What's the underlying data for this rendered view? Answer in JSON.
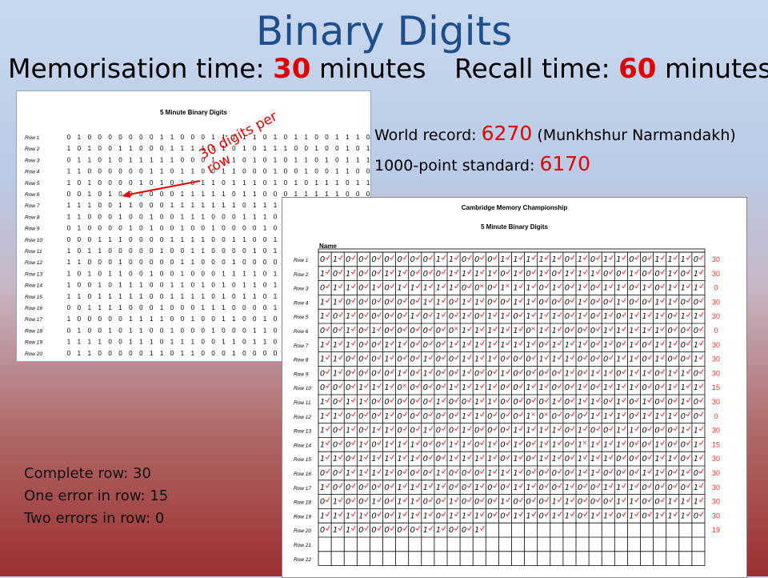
{
  "title": "Binary Digits",
  "memorisation": {
    "label": "Memorisation time:",
    "value": "30",
    "unit": "minutes"
  },
  "recall": {
    "label": "Recall time:",
    "value": "60",
    "unit": "minutes"
  },
  "world_record": {
    "label": "World record:",
    "value": "6270",
    "holder": "(Munkhshur Narmandakh)"
  },
  "standard": {
    "label": "1000-point standard:",
    "value": "6170"
  },
  "annotation": "30 digits per row",
  "scoring": {
    "complete": "Complete row: 30",
    "one_error": "One error in row: 15",
    "two_errors": "Two errors in row: 0"
  },
  "sheet1": {
    "title": "5 Minute Binary Digits",
    "rows": [
      {
        "label": "Row 1",
        "digits": "010000000110001111101011001110"
      },
      {
        "label": "Row 2",
        "digits": "101001100011110101011100100101"
      },
      {
        "label": "Row 3",
        "digits": "011010111110001110101011010111"
      },
      {
        "label": "Row 4",
        "digits": "110000001101100110001001001100"
      },
      {
        "label": "Row 5",
        "digits": "101000010101011011101010111011"
      },
      {
        "label": "Row 6",
        "digits": "001010000001111101100011111000"
      },
      {
        "label": "Row 7",
        "digits": "111001100011111110111010101101"
      },
      {
        "label": "Row 8",
        "digits": "110001001001110001110001101001"
      },
      {
        "label": "Row 9",
        "digits": "010000101001001000010110110110"
      },
      {
        "label": "Row 10",
        "digits": "000111000011110011001011100111"
      },
      {
        "label": "Row 11",
        "digits": "101100000100110000101101010010"
      },
      {
        "label": "Row 12",
        "digits": "110001000001100010000111011100"
      },
      {
        "label": "Row 13",
        "digits": "101011001001000111101001100011"
      },
      {
        "label": "Row 14",
        "digits": "100101110011010101101111001001"
      },
      {
        "label": "Row 15",
        "digits": "110111110011110101101110001101"
      },
      {
        "label": "Row 16",
        "digits": "001111000100011100001100011010"
      },
      {
        "label": "Row 17",
        "digits": "100000111100100110010011100001"
      },
      {
        "label": "Row 18",
        "digits": "010010110010001000110001100111"
      },
      {
        "label": "Row 19",
        "digits": "111100111011100110110110101110"
      },
      {
        "label": "Row 20",
        "digits": "011000001101100010000101110101"
      }
    ]
  },
  "sheet2": {
    "title": "Cambridge Memory Championship",
    "subtitle": "5 Minute Binary Digits",
    "name_label": "Name",
    "rows": [
      {
        "label": "Row 1",
        "digits": "010000000110001111101011001110",
        "score": "30",
        "errors": []
      },
      {
        "label": "Row 2",
        "digits": "101001100011110101011100100101",
        "score": "30",
        "errors": []
      },
      {
        "label": "Row 3",
        "digits": "011010111110001110101011010111",
        "score": "0",
        "errors": [
          12,
          14
        ]
      },
      {
        "label": "Row 4",
        "digits": "110000001101100110001001001100",
        "score": "30",
        "errors": []
      },
      {
        "label": "Row 5",
        "digits": "101000010101011011101010111011",
        "score": "30",
        "errors": []
      },
      {
        "label": "Row 6",
        "digits": "001010000001111101100011111000",
        "score": "0",
        "errors": [
          10,
          16
        ]
      },
      {
        "label": "Row 7",
        "digits": "111001100011111110111010101101",
        "score": "30",
        "errors": []
      },
      {
        "label": "Row 8",
        "digits": "110001001001110001110001101001",
        "score": "30",
        "errors": []
      },
      {
        "label": "Row 9",
        "digits": "010000101001001000010110110110",
        "score": "30",
        "errors": []
      },
      {
        "label": "Row 10",
        "digits": "000111000011110011001011100111",
        "score": "15",
        "errors": [
          6
        ]
      },
      {
        "label": "Row 11",
        "digits": "101100000100110000101101010010",
        "score": "30",
        "errors": []
      },
      {
        "label": "Row 12",
        "digits": "110001000001100010000111011100",
        "score": "0",
        "errors": [
          16,
          17
        ]
      },
      {
        "label": "Row 13",
        "digits": "101011001001000111101001100011",
        "score": "30",
        "errors": []
      },
      {
        "label": "Row 14",
        "digits": "100101110011010101101111001001",
        "score": "15",
        "errors": [
          20
        ]
      },
      {
        "label": "Row 15",
        "digits": "110111110011110101101110001101",
        "score": "30",
        "errors": []
      },
      {
        "label": "Row 16",
        "digits": "001111000100011100001100011010",
        "score": "30",
        "errors": []
      },
      {
        "label": "Row 17",
        "digits": "100000111100100110010011100001",
        "score": "30",
        "errors": []
      },
      {
        "label": "Row 18",
        "digits": "010010110010001000110001100111",
        "score": "30",
        "errors": []
      },
      {
        "label": "Row 19",
        "digits": "111100111011100110110110101110",
        "score": "30",
        "errors": []
      },
      {
        "label": "Row 20",
        "digits": "0110000011001",
        "score": "19",
        "errors": []
      },
      {
        "label": "Row 21",
        "digits": "",
        "score": "",
        "errors": []
      },
      {
        "label": "Row 22",
        "digits": "",
        "score": "",
        "errors": []
      }
    ]
  },
  "colors": {
    "title": "#1f4e8c",
    "accent": "#e00000",
    "mark": "#e53030"
  }
}
